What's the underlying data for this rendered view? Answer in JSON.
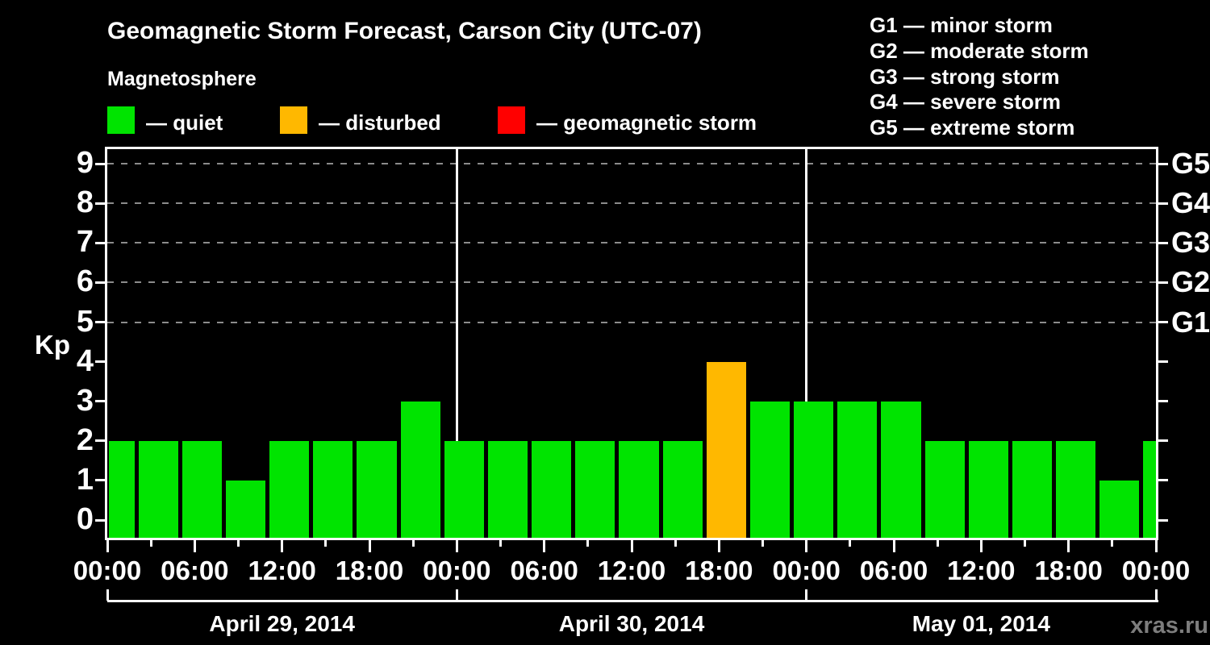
{
  "colors": {
    "background": "#000000",
    "frame": "#ffffff",
    "grid": "#8c8c8c",
    "text": "#ffffff",
    "watermark": "#7d7d7d"
  },
  "header": {
    "legend": [
      {
        "status": "quiet",
        "label": "— quiet"
      },
      {
        "status": "disturbed",
        "label": "— disturbed"
      },
      {
        "status": "storm",
        "label": "— geomagnetic storm"
      }
    ],
    "g_legend": [
      "G1 — minor storm",
      "G2 — moderate storm",
      "G3 — strong storm",
      "G4 — severe storm",
      "G5 — extreme storm"
    ]
  },
  "watermark": "xras.ru",
  "chart_data": {
    "type": "bar",
    "title": "Geomagnetic Storm Forecast, Carson City (UTC-07)",
    "subtitle": "Magnetosphere",
    "ylabel": "Kp",
    "ylim": [
      0,
      9.35
    ],
    "yticks": [
      0,
      1,
      2,
      3,
      4,
      5,
      6,
      7,
      8,
      9
    ],
    "grid_kp": [
      5,
      6,
      7,
      8,
      9
    ],
    "grid_style": "dashed",
    "right_axis": {
      "labels": [
        "G1",
        "G2",
        "G3",
        "G4",
        "G5"
      ],
      "kp_levels": [
        5,
        6,
        7,
        8,
        9
      ]
    },
    "x_total_hours": 72,
    "x_minor_tick_hours": 3,
    "x_major_tick_hours": 6,
    "time_tick_labels": [
      "00:00",
      "06:00",
      "12:00",
      "18:00",
      "00:00",
      "06:00",
      "12:00",
      "18:00",
      "00:00",
      "06:00",
      "12:00",
      "18:00",
      "00:00"
    ],
    "day_boundaries_h": [
      24,
      48
    ],
    "dates": [
      "April 29, 2014",
      "April 30, 2014",
      "May 01, 2014"
    ],
    "bar_unit_hours": 3,
    "status_colors": {
      "quiet": "#00e400",
      "disturbed": "#ffb800",
      "storm": "#ff0000"
    },
    "bars": [
      {
        "start_h": 0,
        "end_h": 2,
        "kp": 2,
        "status": "quiet"
      },
      {
        "start_h": 2,
        "end_h": 5,
        "kp": 2,
        "status": "quiet"
      },
      {
        "start_h": 5,
        "end_h": 8,
        "kp": 2,
        "status": "quiet"
      },
      {
        "start_h": 8,
        "end_h": 11,
        "kp": 1,
        "status": "quiet"
      },
      {
        "start_h": 11,
        "end_h": 14,
        "kp": 2,
        "status": "quiet"
      },
      {
        "start_h": 14,
        "end_h": 17,
        "kp": 2,
        "status": "quiet"
      },
      {
        "start_h": 17,
        "end_h": 20,
        "kp": 2,
        "status": "quiet"
      },
      {
        "start_h": 20,
        "end_h": 23,
        "kp": 3,
        "status": "quiet"
      },
      {
        "start_h": 23,
        "end_h": 26,
        "kp": 2,
        "status": "quiet"
      },
      {
        "start_h": 26,
        "end_h": 29,
        "kp": 2,
        "status": "quiet"
      },
      {
        "start_h": 29,
        "end_h": 32,
        "kp": 2,
        "status": "quiet"
      },
      {
        "start_h": 32,
        "end_h": 35,
        "kp": 2,
        "status": "quiet"
      },
      {
        "start_h": 35,
        "end_h": 38,
        "kp": 2,
        "status": "quiet"
      },
      {
        "start_h": 38,
        "end_h": 41,
        "kp": 2,
        "status": "quiet"
      },
      {
        "start_h": 41,
        "end_h": 44,
        "kp": 4,
        "status": "disturbed"
      },
      {
        "start_h": 44,
        "end_h": 47,
        "kp": 3,
        "status": "quiet"
      },
      {
        "start_h": 47,
        "end_h": 50,
        "kp": 3,
        "status": "quiet"
      },
      {
        "start_h": 50,
        "end_h": 53,
        "kp": 3,
        "status": "quiet"
      },
      {
        "start_h": 53,
        "end_h": 56,
        "kp": 3,
        "status": "quiet"
      },
      {
        "start_h": 56,
        "end_h": 59,
        "kp": 2,
        "status": "quiet"
      },
      {
        "start_h": 59,
        "end_h": 62,
        "kp": 2,
        "status": "quiet"
      },
      {
        "start_h": 62,
        "end_h": 65,
        "kp": 2,
        "status": "quiet"
      },
      {
        "start_h": 65,
        "end_h": 68,
        "kp": 2,
        "status": "quiet"
      },
      {
        "start_h": 68,
        "end_h": 71,
        "kp": 1,
        "status": "quiet"
      },
      {
        "start_h": 71,
        "end_h": 72,
        "kp": 2,
        "status": "quiet"
      }
    ]
  }
}
